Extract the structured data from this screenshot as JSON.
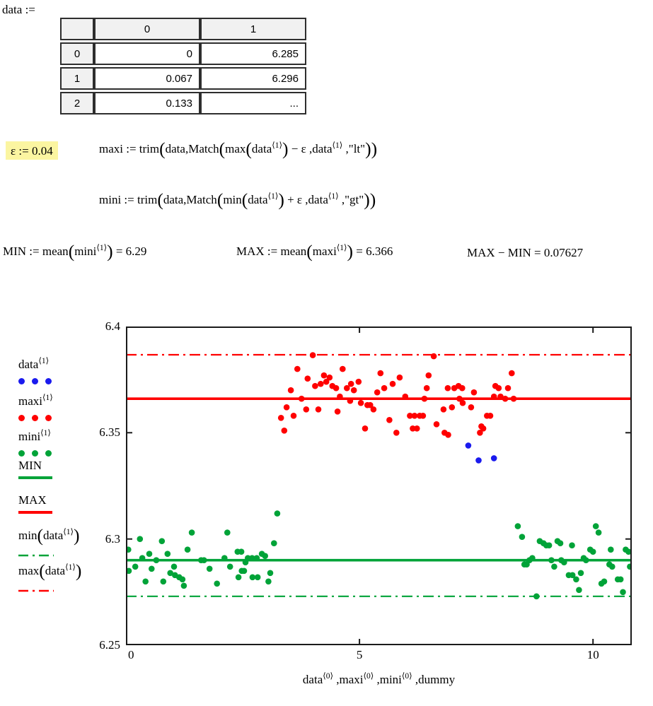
{
  "worksheet": {
    "data_label": "data :=",
    "highlight_color": "#fbf5a1",
    "table": {
      "col_headers": [
        "",
        "0",
        "1"
      ],
      "rows": [
        {
          "index": "0",
          "cells": [
            "0",
            "6.285"
          ]
        },
        {
          "index": "1",
          "cells": [
            "0.067",
            "6.296"
          ]
        },
        {
          "index": "2",
          "cells": [
            "0.133",
            "..."
          ]
        }
      ]
    },
    "equations": {
      "epsilon": [
        {
          "t": "ε  :=  0.04"
        }
      ],
      "maxi": [
        {
          "t": "maxi := trim"
        },
        {
          "b": "("
        },
        {
          "t": "data,Match"
        },
        {
          "b": "("
        },
        {
          "t": "max"
        },
        {
          "b": "("
        },
        {
          "t": "data"
        },
        {
          "s": "⟨1⟩"
        },
        {
          "b": ")"
        },
        {
          "t": " − ε ,data"
        },
        {
          "s": "⟨1⟩"
        },
        {
          "t": " ,\"lt\""
        },
        {
          "b": ")"
        },
        {
          "b": ")"
        }
      ],
      "mini": [
        {
          "t": "mini := trim"
        },
        {
          "b": "("
        },
        {
          "t": "data,Match"
        },
        {
          "b": "("
        },
        {
          "t": "min"
        },
        {
          "b": "("
        },
        {
          "t": "data"
        },
        {
          "s": "⟨1⟩"
        },
        {
          "b": ")"
        },
        {
          "t": " + ε ,data"
        },
        {
          "s": "⟨1⟩"
        },
        {
          "t": " ,\"gt\""
        },
        {
          "b": ")"
        },
        {
          "b": ")"
        }
      ],
      "min_def": [
        {
          "t": "MIN := mean"
        },
        {
          "b": "("
        },
        {
          "t": "mini"
        },
        {
          "s": "⟨1⟩"
        },
        {
          "b": ")"
        },
        {
          "t": " = 6.29"
        }
      ],
      "max_def": [
        {
          "t": "MAX := mean"
        },
        {
          "b": "("
        },
        {
          "t": "maxi"
        },
        {
          "s": "⟨1⟩"
        },
        {
          "b": ")"
        },
        {
          "t": " = 6.366"
        }
      ],
      "diff": [
        {
          "t": "MAX − MIN = 0.07627"
        }
      ]
    }
  },
  "legend": {
    "entries": [
      {
        "name": "data-col1",
        "label": [
          {
            "t": "data"
          },
          {
            "s": "⟨1⟩"
          }
        ],
        "symbol": "dots",
        "color": "#1a1aee"
      },
      {
        "name": "maxi-col1",
        "label": [
          {
            "t": "maxi"
          },
          {
            "s": "⟨1⟩"
          }
        ],
        "symbol": "dots",
        "color": "#ff0000"
      },
      {
        "name": "mini-col1",
        "label": [
          {
            "t": "mini"
          },
          {
            "s": "⟨1⟩"
          }
        ],
        "symbol": "dots",
        "color": "#00a338"
      },
      {
        "name": "MIN",
        "label": [
          {
            "t": "MIN"
          }
        ],
        "symbol": "line",
        "color": "#00a338"
      },
      {
        "name": "MAX",
        "label": [
          {
            "t": "MAX"
          }
        ],
        "symbol": "line",
        "color": "#ff0000"
      },
      {
        "name": "min-data",
        "label": [
          {
            "t": "min"
          },
          {
            "b": "("
          },
          {
            "t": "data"
          },
          {
            "s": "⟨1⟩"
          },
          {
            "b": ")"
          }
        ],
        "symbol": "dashdot",
        "color": "#00a338"
      },
      {
        "name": "max-data",
        "label": [
          {
            "t": "max"
          },
          {
            "b": "("
          },
          {
            "t": "data"
          },
          {
            "s": "⟨1⟩"
          },
          {
            "b": ")"
          }
        ],
        "symbol": "dashdot",
        "color": "#ff0000"
      }
    ]
  },
  "chart_data": {
    "type": "scatter",
    "title": "",
    "xlabel": "data⟨0⟩ ,maxi⟨0⟩ ,mini⟨0⟩ ,dummy",
    "xlabel_segments": [
      {
        "t": "data"
      },
      {
        "s": "⟨0⟩"
      },
      {
        "t": " ,maxi"
      },
      {
        "s": "⟨0⟩"
      },
      {
        "t": " ,mini"
      },
      {
        "s": "⟨0⟩"
      },
      {
        "t": " ,dummy"
      }
    ],
    "ylabel": "",
    "xlim": [
      0,
      10.83
    ],
    "ylim": [
      6.25,
      6.4
    ],
    "x_ticks": [
      0,
      5,
      10
    ],
    "x_tick_labels": [
      "0",
      "5",
      "10"
    ],
    "y_ticks": [
      6.25,
      6.3,
      6.35,
      6.4
    ],
    "y_tick_labels": [
      "6.25",
      "6.3",
      "6.35",
      "6.4"
    ],
    "grid": false,
    "legend_position": "left",
    "frame_color": "#1a1a1a",
    "hlines": [
      {
        "name": "max-data-line",
        "y": 6.3867,
        "color": "#ff0000",
        "style": "dashdot"
      },
      {
        "name": "min-data-line",
        "y": 6.273,
        "color": "#00a338",
        "style": "dashdot"
      },
      {
        "name": "MAX-line",
        "y": 6.366,
        "color": "#ff0000",
        "style": "solid"
      },
      {
        "name": "MIN-line",
        "y": 6.29,
        "color": "#00a338",
        "style": "solid"
      }
    ],
    "series": [
      {
        "name": "mini",
        "color": "#00a338",
        "points": [
          [
            0.05,
            6.295
          ],
          [
            0.3,
            6.3
          ],
          [
            0.5,
            6.293
          ],
          [
            0.77,
            6.299
          ],
          [
            1.41,
            6.303
          ],
          [
            1.32,
            6.295
          ],
          [
            0.89,
            6.293
          ],
          [
            0.35,
            6.291
          ],
          [
            0.65,
            6.29
          ],
          [
            0.2,
            6.287
          ],
          [
            0.06,
            6.285
          ],
          [
            0.55,
            6.286
          ],
          [
            1.03,
            6.287
          ],
          [
            0.95,
            6.284
          ],
          [
            1.05,
            6.283
          ],
          [
            1.14,
            6.282
          ],
          [
            1.21,
            6.281
          ],
          [
            0.42,
            6.28
          ],
          [
            0.8,
            6.28
          ],
          [
            1.24,
            6.278
          ],
          [
            2.17,
            6.303
          ],
          [
            1.61,
            6.29
          ],
          [
            1.67,
            6.29
          ],
          [
            1.79,
            6.286
          ],
          [
            2.11,
            6.291
          ],
          [
            2.23,
            6.287
          ],
          [
            1.95,
            6.279
          ],
          [
            2.39,
            6.294
          ],
          [
            2.41,
            6.282
          ],
          [
            3.24,
            6.312
          ],
          [
            3.17,
            6.298
          ],
          [
            2.47,
            6.294
          ],
          [
            2.91,
            6.293
          ],
          [
            2.98,
            6.292
          ],
          [
            2.61,
            6.291
          ],
          [
            2.7,
            6.291
          ],
          [
            2.8,
            6.291
          ],
          [
            2.56,
            6.289
          ],
          [
            2.48,
            6.285
          ],
          [
            2.53,
            6.285
          ],
          [
            2.71,
            6.282
          ],
          [
            2.82,
            6.282
          ],
          [
            3.09,
            6.284
          ],
          [
            3.05,
            6.28
          ],
          [
            8.39,
            6.306
          ],
          [
            8.48,
            6.301
          ],
          [
            8.86,
            6.299
          ],
          [
            8.94,
            6.298
          ],
          [
            9.0,
            6.297
          ],
          [
            9.06,
            6.297
          ],
          [
            9.24,
            6.299
          ],
          [
            9.3,
            6.298
          ],
          [
            9.55,
            6.297
          ],
          [
            10.06,
            6.306
          ],
          [
            10.12,
            6.303
          ],
          [
            9.94,
            6.295
          ],
          [
            10.0,
            6.294
          ],
          [
            10.38,
            6.295
          ],
          [
            10.7,
            6.295
          ],
          [
            10.76,
            6.294
          ],
          [
            8.64,
            6.29
          ],
          [
            8.7,
            6.291
          ],
          [
            8.53,
            6.288
          ],
          [
            8.58,
            6.288
          ],
          [
            9.11,
            6.29
          ],
          [
            9.17,
            6.287
          ],
          [
            9.32,
            6.29
          ],
          [
            9.38,
            6.289
          ],
          [
            9.8,
            6.291
          ],
          [
            9.85,
            6.29
          ],
          [
            10.35,
            6.288
          ],
          [
            10.41,
            6.287
          ],
          [
            10.79,
            6.287
          ],
          [
            9.48,
            6.283
          ],
          [
            9.56,
            6.283
          ],
          [
            9.64,
            6.281
          ],
          [
            9.74,
            6.284
          ],
          [
            9.7,
            6.276
          ],
          [
            10.18,
            6.279
          ],
          [
            10.24,
            6.28
          ],
          [
            10.53,
            6.281
          ],
          [
            10.59,
            6.281
          ],
          [
            10.64,
            6.275
          ],
          [
            8.79,
            6.273
          ]
        ]
      },
      {
        "name": "maxi",
        "color": "#ff0000",
        "points": [
          [
            4.0,
            6.3865
          ],
          [
            6.59,
            6.386
          ],
          [
            3.67,
            6.38
          ],
          [
            4.64,
            6.38
          ],
          [
            5.45,
            6.378
          ],
          [
            8.26,
            6.378
          ],
          [
            3.89,
            6.3755
          ],
          [
            4.24,
            6.377
          ],
          [
            4.29,
            6.374
          ],
          [
            4.17,
            6.373
          ],
          [
            4.36,
            6.376
          ],
          [
            4.42,
            6.372
          ],
          [
            4.05,
            6.372
          ],
          [
            4.5,
            6.371
          ],
          [
            4.73,
            6.371
          ],
          [
            4.82,
            6.373
          ],
          [
            4.88,
            6.37
          ],
          [
            4.98,
            6.374
          ],
          [
            5.71,
            6.373
          ],
          [
            5.86,
            6.376
          ],
          [
            6.48,
            6.377
          ],
          [
            6.44,
            6.371
          ],
          [
            6.89,
            6.371
          ],
          [
            7.03,
            6.371
          ],
          [
            7.12,
            6.372
          ],
          [
            7.2,
            6.371
          ],
          [
            7.45,
            6.369
          ],
          [
            7.91,
            6.372
          ],
          [
            7.98,
            6.371
          ],
          [
            8.18,
            6.371
          ],
          [
            3.53,
            6.37
          ],
          [
            5.38,
            6.369
          ],
          [
            5.53,
            6.371
          ],
          [
            3.76,
            6.366
          ],
          [
            4.58,
            6.367
          ],
          [
            4.8,
            6.365
          ],
          [
            5.03,
            6.364
          ],
          [
            5.17,
            6.363
          ],
          [
            5.23,
            6.363
          ],
          [
            5.3,
            6.361
          ],
          [
            3.44,
            6.362
          ],
          [
            3.86,
            6.361
          ],
          [
            4.12,
            6.361
          ],
          [
            4.53,
            6.36
          ],
          [
            3.32,
            6.357
          ],
          [
            3.59,
            6.358
          ],
          [
            3.39,
            6.351
          ],
          [
            5.64,
            6.356
          ],
          [
            5.12,
            6.352
          ],
          [
            5.98,
            6.367
          ],
          [
            6.39,
            6.366
          ],
          [
            7.14,
            6.366
          ],
          [
            7.88,
            6.367
          ],
          [
            8.02,
            6.367
          ],
          [
            8.12,
            6.366
          ],
          [
            8.3,
            6.366
          ],
          [
            7.21,
            6.364
          ],
          [
            7.39,
            6.362
          ],
          [
            6.8,
            6.361
          ],
          [
            6.98,
            6.362
          ],
          [
            6.08,
            6.358
          ],
          [
            6.18,
            6.358
          ],
          [
            6.29,
            6.358
          ],
          [
            6.36,
            6.358
          ],
          [
            7.73,
            6.358
          ],
          [
            7.8,
            6.358
          ],
          [
            6.65,
            6.354
          ],
          [
            6.14,
            6.352
          ],
          [
            6.23,
            6.352
          ],
          [
            7.61,
            6.353
          ],
          [
            7.65,
            6.352
          ],
          [
            6.82,
            6.35
          ],
          [
            5.79,
            6.35
          ],
          [
            6.9,
            6.349
          ],
          [
            7.58,
            6.35
          ]
        ]
      },
      {
        "name": "data",
        "color": "#1a1aee",
        "points": [
          [
            7.33,
            6.344
          ],
          [
            7.55,
            6.337
          ],
          [
            7.88,
            6.338
          ]
        ]
      }
    ]
  }
}
